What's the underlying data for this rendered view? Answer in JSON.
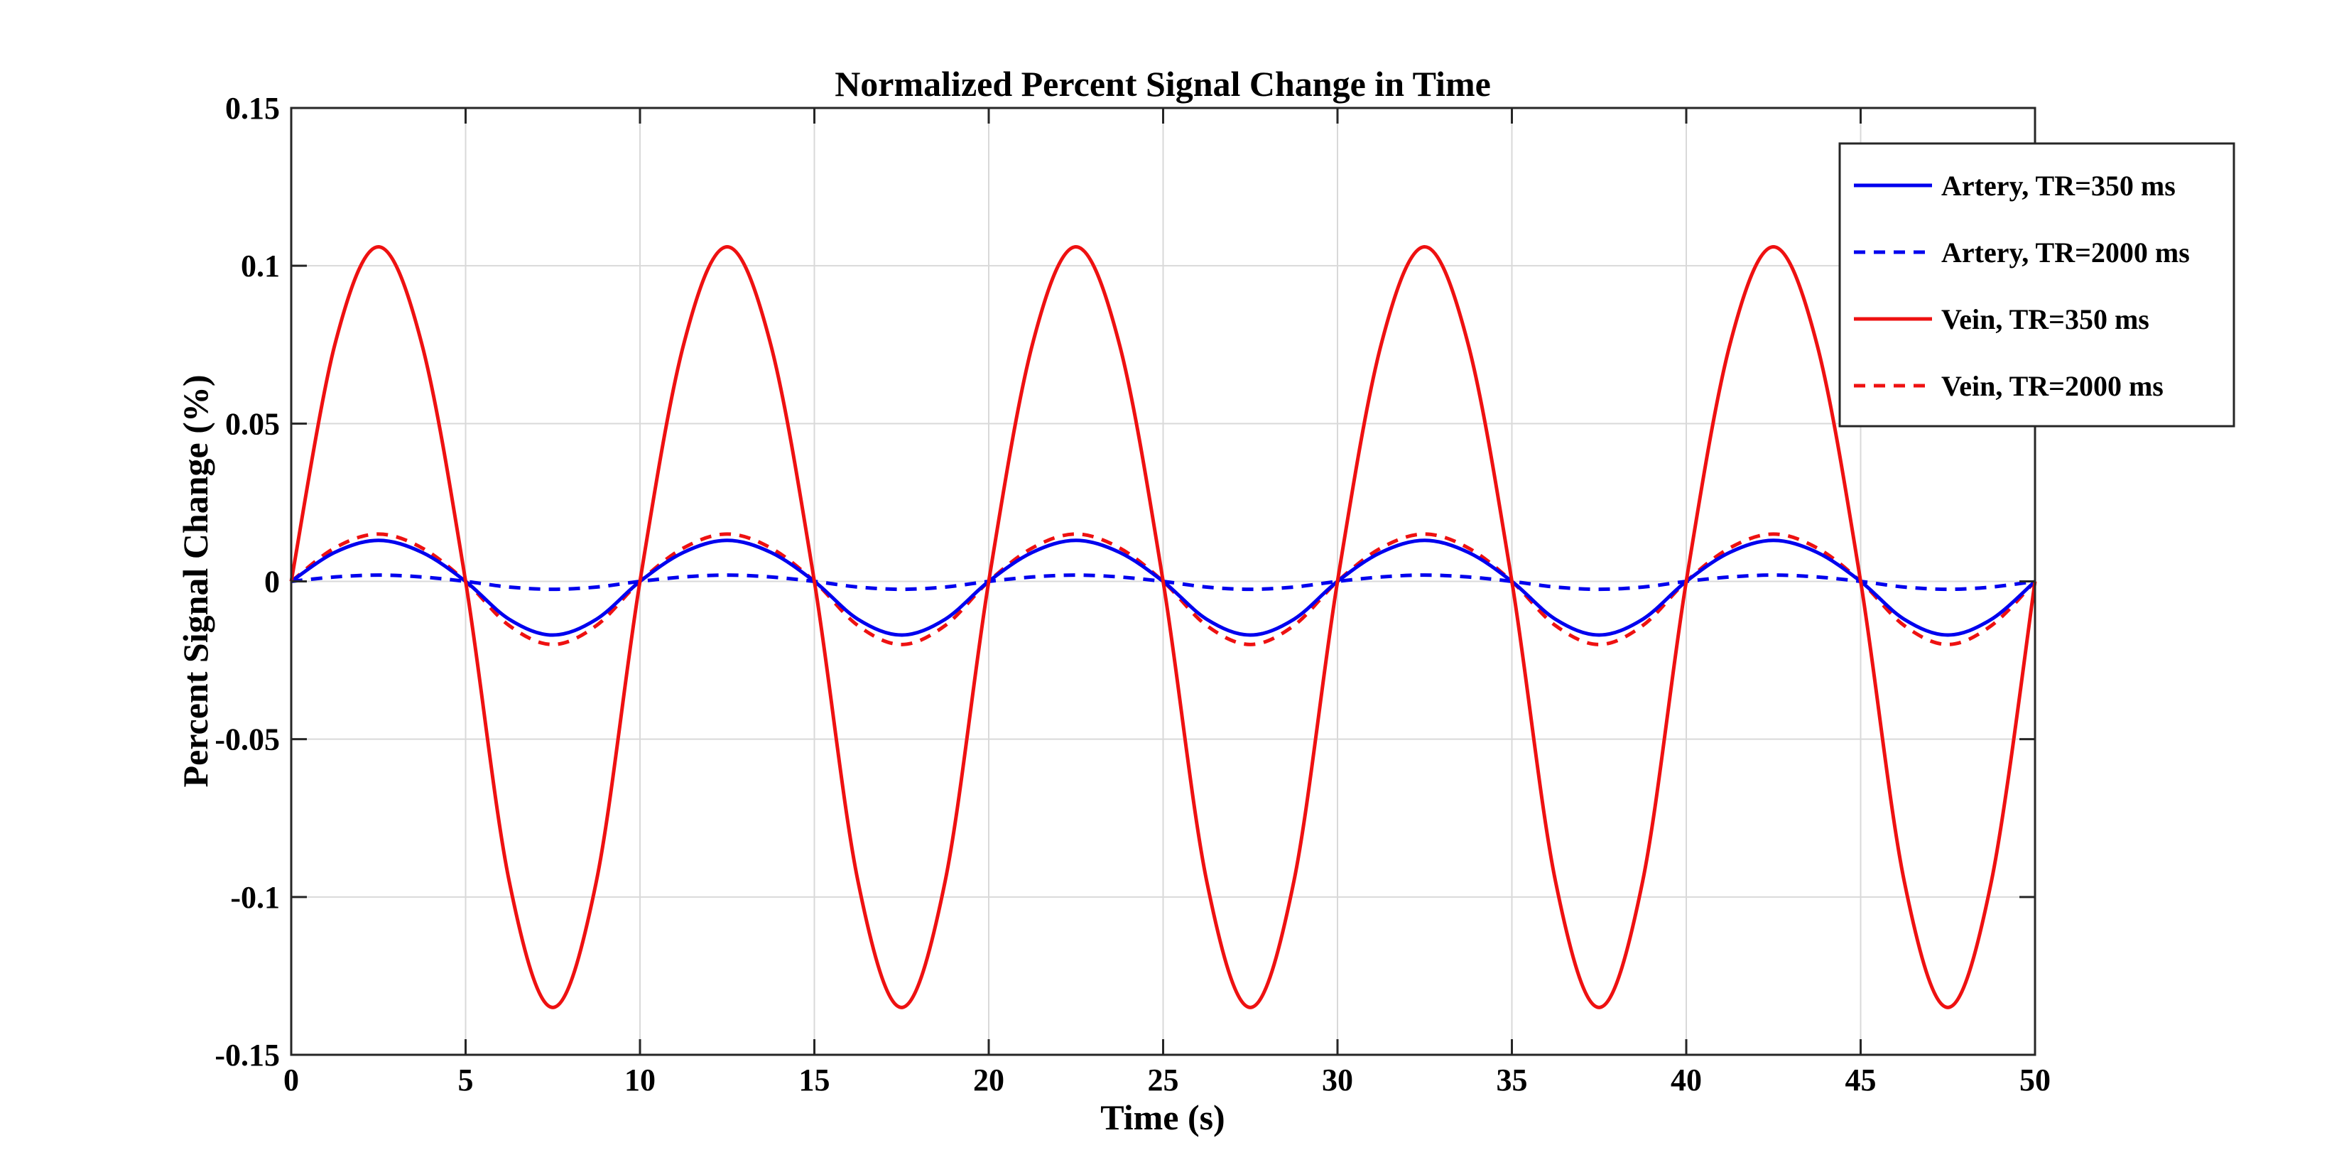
{
  "chart_data": {
    "type": "line",
    "title": "Normalized Percent Signal Change in Time",
    "xlabel": "Time (s)",
    "ylabel": "Percent Signal Change (%)",
    "xlim": [
      0,
      50
    ],
    "ylim": [
      -0.15,
      0.15
    ],
    "grid": true,
    "legend_position": "top-right",
    "x_ticks": [
      0,
      5,
      10,
      15,
      20,
      25,
      30,
      35,
      40,
      45,
      50
    ],
    "x_tick_labels": [
      "0",
      "5",
      "10",
      "15",
      "20",
      "25",
      "30",
      "35",
      "40",
      "45",
      "50"
    ],
    "y_ticks": [
      -0.15,
      -0.1,
      -0.05,
      0,
      0.05,
      0.1,
      0.15
    ],
    "y_tick_labels": [
      "-0.15",
      "-0.1",
      "-0.05",
      "0",
      "0.05",
      "0.1",
      "0.15"
    ],
    "x": [
      0,
      1.25,
      2.5,
      3.75,
      5,
      6.25,
      7.5,
      8.75,
      10,
      11.25,
      12.5,
      13.75,
      15,
      16.25,
      17.5,
      18.75,
      20,
      21.25,
      22.5,
      23.75,
      25,
      26.25,
      27.5,
      28.75,
      30,
      31.25,
      32.5,
      33.75,
      35,
      36.25,
      37.5,
      38.75,
      40,
      41.25,
      42.5,
      43.75,
      45,
      46.25,
      47.5,
      48.75,
      50
    ],
    "series": [
      {
        "name": "Artery, TR=350 ms",
        "color": "#0000ee",
        "style": "solid",
        "values": [
          0,
          0.0092,
          0.013,
          0.0092,
          0,
          -0.012,
          -0.017,
          -0.012,
          0,
          0.0092,
          0.013,
          0.0092,
          0,
          -0.012,
          -0.017,
          -0.012,
          0,
          0.0092,
          0.013,
          0.0092,
          0,
          -0.012,
          -0.017,
          -0.012,
          0,
          0.0092,
          0.013,
          0.0092,
          0,
          -0.012,
          -0.017,
          -0.012,
          0,
          0.0092,
          0.013,
          0.0092,
          0,
          -0.012,
          -0.017,
          -0.012,
          0
        ]
      },
      {
        "name": "Artery, TR=2000 ms",
        "color": "#0000ee",
        "style": "dashed",
        "values": [
          0,
          0.0014,
          0.002,
          0.0014,
          0,
          -0.0018,
          -0.0025,
          -0.0018,
          0,
          0.0014,
          0.002,
          0.0014,
          0,
          -0.0018,
          -0.0025,
          -0.0018,
          0,
          0.0014,
          0.002,
          0.0014,
          0,
          -0.0018,
          -0.0025,
          -0.0018,
          0,
          0.0014,
          0.002,
          0.0014,
          0,
          -0.0018,
          -0.0025,
          -0.0018,
          0,
          0.0014,
          0.002,
          0.0014,
          0,
          -0.0018,
          -0.0025,
          -0.0018,
          0
        ]
      },
      {
        "name": "Vein, TR=350 ms",
        "color": "#ee1111",
        "style": "solid",
        "values": [
          0,
          0.075,
          0.106,
          0.075,
          0,
          -0.095,
          -0.135,
          -0.095,
          0,
          0.075,
          0.106,
          0.075,
          0,
          -0.095,
          -0.135,
          -0.095,
          0,
          0.075,
          0.106,
          0.075,
          0,
          -0.095,
          -0.135,
          -0.095,
          0,
          0.075,
          0.106,
          0.075,
          0,
          -0.095,
          -0.135,
          -0.095,
          0,
          0.075,
          0.106,
          0.075,
          0,
          -0.095,
          -0.135,
          -0.095,
          0
        ]
      },
      {
        "name": "Vein, TR=2000 ms",
        "color": "#ee1111",
        "style": "dashed",
        "values": [
          0,
          0.0106,
          0.015,
          0.0106,
          0,
          -0.014,
          -0.02,
          -0.014,
          0,
          0.0106,
          0.015,
          0.0106,
          0,
          -0.014,
          -0.02,
          -0.014,
          0,
          0.0106,
          0.015,
          0.0106,
          0,
          -0.014,
          -0.02,
          -0.014,
          0,
          0.0106,
          0.015,
          0.0106,
          0,
          -0.014,
          -0.02,
          -0.014,
          0,
          0.0106,
          0.015,
          0.0106,
          0,
          -0.014,
          -0.02,
          -0.014,
          0
        ]
      }
    ]
  }
}
